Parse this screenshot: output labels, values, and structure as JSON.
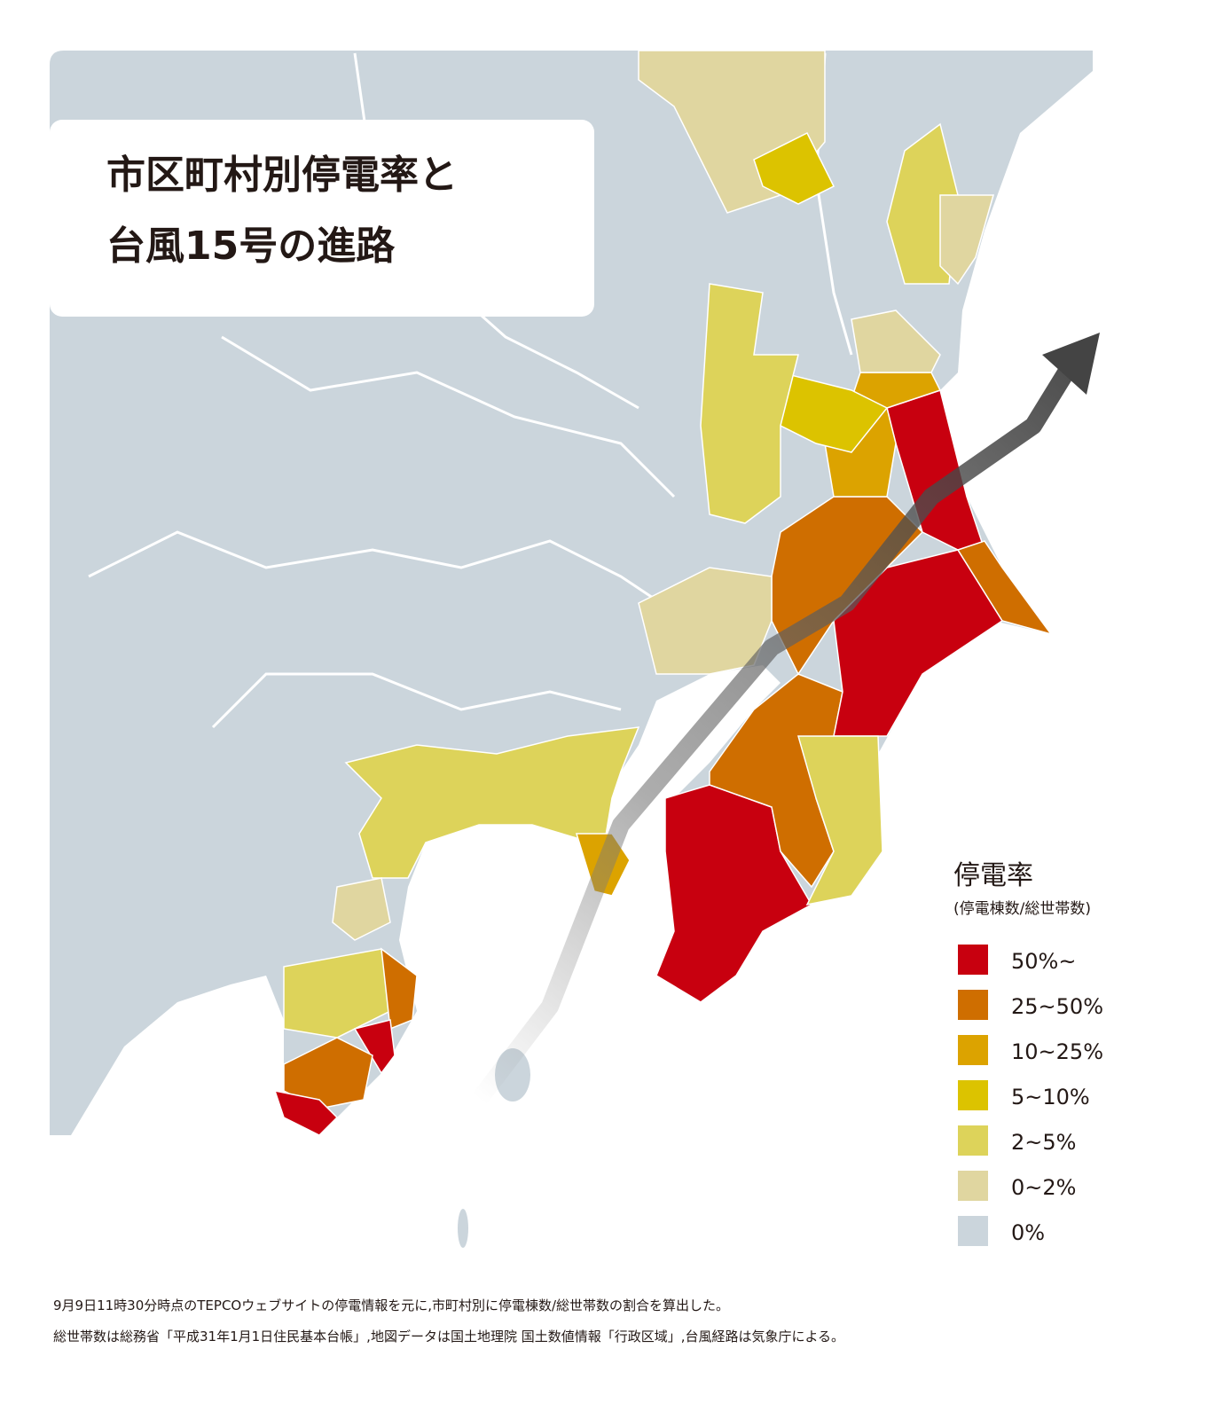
{
  "title_lines": [
    "市区町村別停電率と",
    "台風15号の進路"
  ],
  "legend": {
    "title": "停電率",
    "subtitle": "(停電棟数/総世帯数)",
    "items": [
      {
        "label": "50%~",
        "color": "#c8000f"
      },
      {
        "label": "25~50%",
        "color": "#cf6e00"
      },
      {
        "label": "10~25%",
        "color": "#dca300"
      },
      {
        "label": "5~10%",
        "color": "#dcc300"
      },
      {
        "label": "2~5%",
        "color": "#ddd35a"
      },
      {
        "label": "0~2%",
        "color": "#e0d6a0"
      },
      {
        "label": "0%",
        "color": "#cbd5dc"
      }
    ]
  },
  "notes": [
    "9月9日11時30分時点のTEPCOウェブサイトの停電情報を元に,市町村別に停電棟数/総世帯数の割合を算出した。",
    "総世帯数は総務省「平成31年1月1日住民基本台帳」,地図データは国土地理院 国土数値情報「行政区域」,台風経路は気象庁による。"
  ]
}
